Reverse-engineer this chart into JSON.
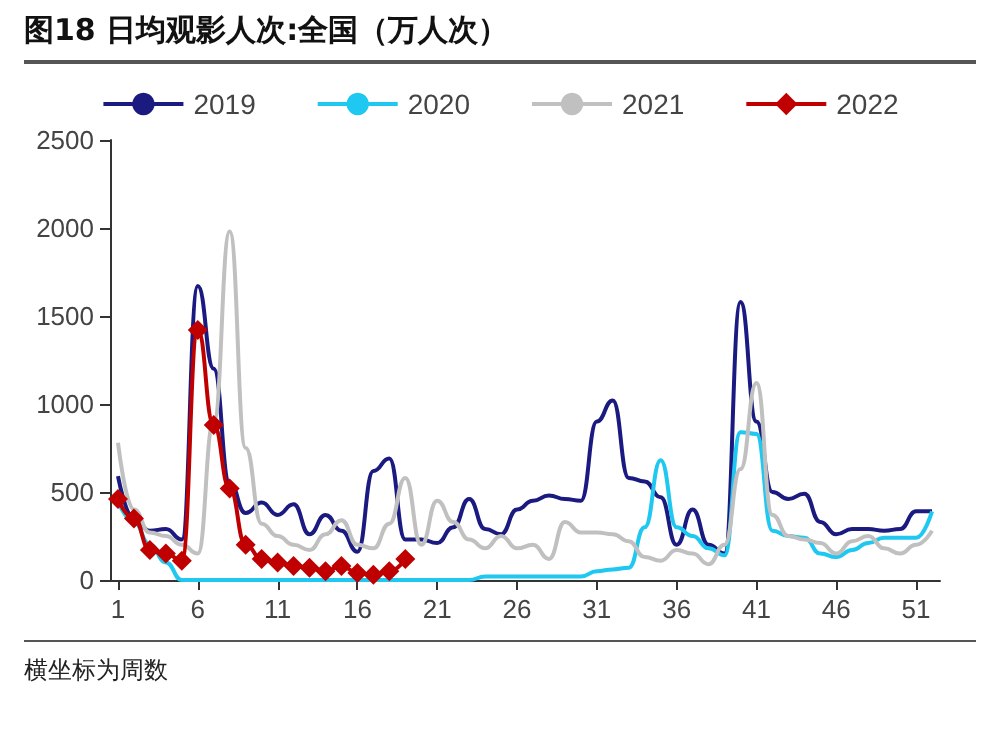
{
  "chart_data": {
    "type": "line",
    "title": "图18 日均观影人次:全国（万人次）",
    "annotations": [
      "横坐标为周数"
    ],
    "x": [
      1,
      2,
      3,
      4,
      5,
      6,
      7,
      8,
      9,
      10,
      11,
      12,
      13,
      14,
      15,
      16,
      17,
      18,
      19,
      20,
      21,
      22,
      23,
      24,
      25,
      26,
      27,
      28,
      29,
      30,
      31,
      32,
      33,
      34,
      35,
      36,
      37,
      38,
      39,
      40,
      41,
      42,
      43,
      44,
      45,
      46,
      47,
      48,
      49,
      50,
      51,
      52
    ],
    "xlim": [
      0.5,
      52.5
    ],
    "xticks": [
      1,
      6,
      11,
      16,
      21,
      26,
      31,
      36,
      41,
      46,
      51
    ],
    "ylim": [
      0,
      2500
    ],
    "yticks": [
      0,
      500,
      1000,
      1500,
      2000,
      2500
    ],
    "legend": "top",
    "grid": false,
    "series": [
      {
        "name": "2019",
        "color": "#1a1a80",
        "values": [
          590,
          350,
          280,
          290,
          230,
          1670,
          1200,
          550,
          380,
          440,
          370,
          430,
          260,
          370,
          280,
          160,
          620,
          690,
          230,
          230,
          210,
          300,
          460,
          290,
          260,
          400,
          450,
          480,
          460,
          450,
          900,
          1020,
          580,
          560,
          470,
          200,
          400,
          200,
          150,
          1580,
          900,
          500,
          460,
          490,
          330,
          260,
          290,
          290,
          280,
          290,
          390,
          390
        ]
      },
      {
        "name": "2020",
        "color": "#1ec8f0",
        "values": [
          450,
          330,
          200,
          100,
          0,
          0,
          0,
          0,
          0,
          0,
          0,
          0,
          0,
          0,
          0,
          0,
          0,
          0,
          0,
          0,
          0,
          0,
          0,
          20,
          20,
          20,
          20,
          20,
          20,
          20,
          50,
          60,
          70,
          300,
          680,
          300,
          250,
          180,
          140,
          840,
          830,
          280,
          250,
          240,
          150,
          130,
          170,
          210,
          240,
          240,
          240,
          390
        ]
      },
      {
        "name": "2021",
        "color": "#c0c0c0",
        "values": [
          780,
          400,
          270,
          250,
          200,
          150,
          900,
          1980,
          750,
          320,
          250,
          200,
          170,
          260,
          340,
          200,
          180,
          320,
          580,
          200,
          450,
          330,
          230,
          180,
          250,
          180,
          200,
          120,
          330,
          270,
          270,
          260,
          220,
          130,
          110,
          170,
          150,
          90,
          200,
          630,
          1120,
          370,
          250,
          230,
          210,
          150,
          220,
          250,
          180,
          150,
          200,
          280
        ]
      },
      {
        "name": "2022",
        "color": "#c00000",
        "type": "line",
        "marker": "diamond",
        "values": [
          460,
          350,
          170,
          150,
          110,
          1420,
          880,
          520,
          200,
          120,
          100,
          80,
          70,
          50,
          80,
          40,
          30,
          50,
          120,
          null,
          null,
          null,
          null,
          null,
          null,
          null,
          null,
          null,
          null,
          null,
          null,
          null,
          null,
          null,
          null,
          null,
          null,
          null,
          null,
          null,
          null,
          null,
          null,
          null,
          null,
          null,
          null,
          null,
          null,
          null,
          null,
          null
        ]
      }
    ]
  }
}
